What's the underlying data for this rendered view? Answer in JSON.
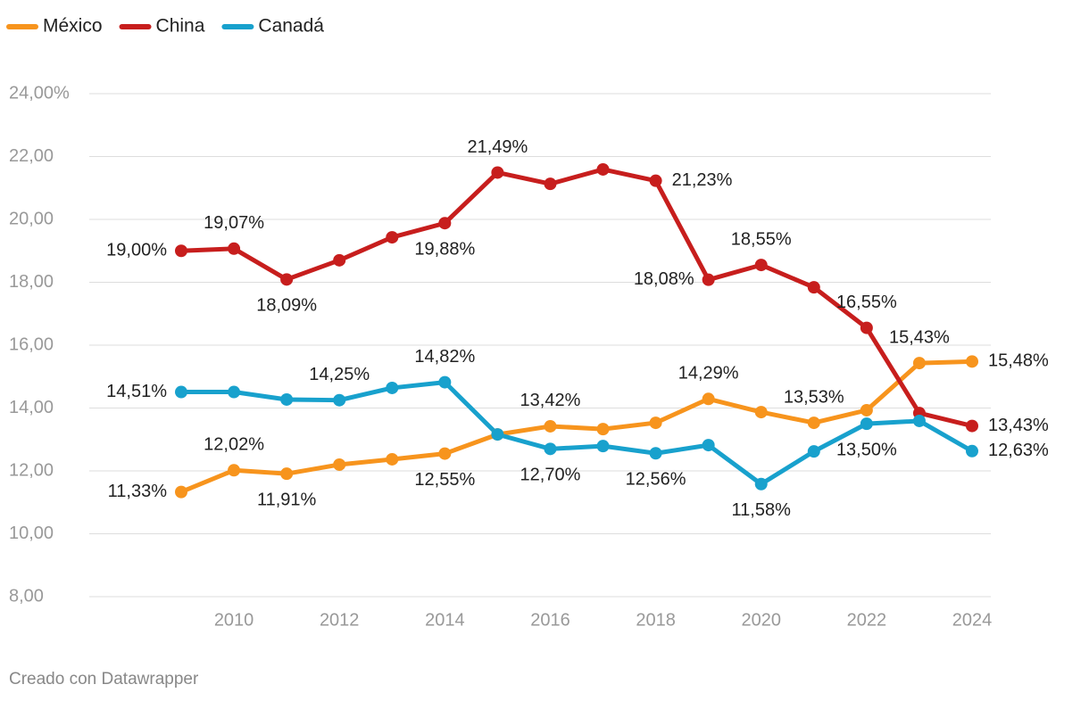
{
  "chart_data": {
    "type": "line",
    "x": [
      2009,
      2010,
      2011,
      2012,
      2013,
      2014,
      2015,
      2016,
      2017,
      2018,
      2019,
      2020,
      2021,
      2022,
      2023,
      2024
    ],
    "xlim": [
      2009,
      2024
    ],
    "xticks": [
      2010,
      2012,
      2014,
      2016,
      2018,
      2020,
      2022,
      2024
    ],
    "ylim": [
      8,
      24
    ],
    "yticks": [
      {
        "value": 8,
        "label": "8,00"
      },
      {
        "value": 10,
        "label": "10,00"
      },
      {
        "value": 12,
        "label": "12,00"
      },
      {
        "value": 14,
        "label": "14,00"
      },
      {
        "value": 16,
        "label": "16,00"
      },
      {
        "value": 18,
        "label": "18,00"
      },
      {
        "value": 20,
        "label": "20,00"
      },
      {
        "value": 22,
        "label": "22,00"
      },
      {
        "value": 24,
        "label": "24,00%"
      }
    ],
    "grid": true,
    "legend": "top-left",
    "series": [
      {
        "name": "México",
        "color": "#f7941d",
        "values": [
          11.33,
          12.02,
          11.91,
          12.2,
          12.37,
          12.55,
          13.16,
          13.42,
          13.33,
          13.53,
          14.29,
          13.87,
          13.53,
          13.93,
          15.43,
          15.48
        ],
        "value_labels": [
          "11,33%",
          "12,02%",
          "11,91%",
          null,
          null,
          "12,55%",
          null,
          "13,42%",
          null,
          null,
          "14,29%",
          null,
          "13,53%",
          null,
          "15,43%",
          "15,48%"
        ]
      },
      {
        "name": "China",
        "color": "#c71e1d",
        "values": [
          19.0,
          19.07,
          18.09,
          18.7,
          19.43,
          19.88,
          21.49,
          21.13,
          21.59,
          21.23,
          18.08,
          18.55,
          17.84,
          16.55,
          13.84,
          13.43
        ],
        "value_labels": [
          "19,00%",
          "19,07%",
          "18,09%",
          null,
          null,
          "19,88%",
          "21,49%",
          null,
          null,
          "21,23%",
          "18,08%",
          "18,55%",
          null,
          "16,55%",
          null,
          "13,43%"
        ]
      },
      {
        "name": "Canadá",
        "color": "#18a1cd",
        "values": [
          14.51,
          14.51,
          14.27,
          14.25,
          14.64,
          14.82,
          13.16,
          12.7,
          12.79,
          12.56,
          12.82,
          11.58,
          12.62,
          13.5,
          13.59,
          12.63
        ],
        "value_labels": [
          "14,51%",
          null,
          null,
          "14,25%",
          null,
          "14,82%",
          null,
          "12,70%",
          null,
          "12,56%",
          null,
          "11,58%",
          null,
          "13,50%",
          null,
          "12,63%"
        ]
      }
    ],
    "source": "Creado con Datawrapper"
  }
}
